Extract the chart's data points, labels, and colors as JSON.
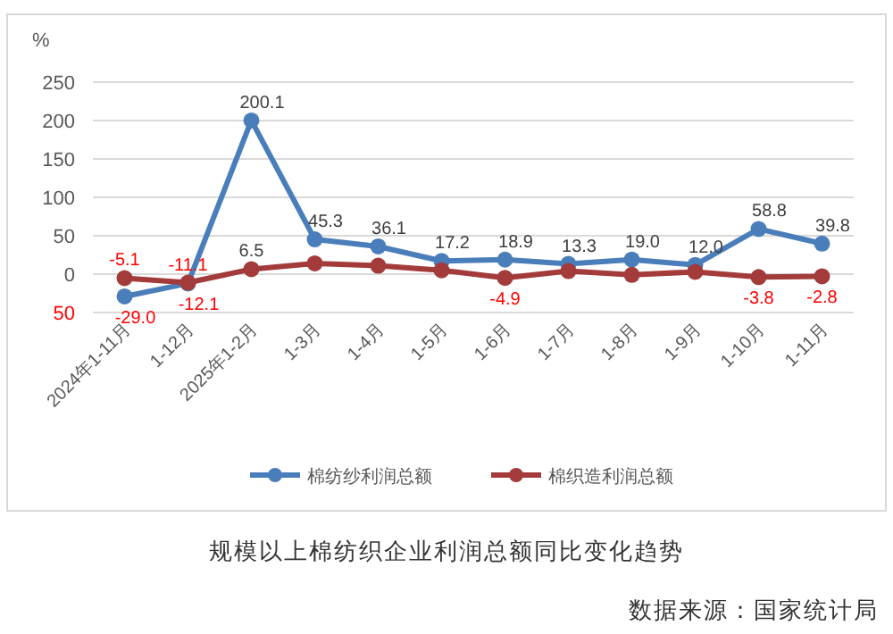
{
  "chart_data": {
    "type": "line",
    "ylabel": "%",
    "categories": [
      "2024年1-11月",
      "1-12月",
      "2025年1-2月",
      "1-3月",
      "1-4月",
      "1-5月",
      "1-6月",
      "1-7月",
      "1-8月",
      "1-9月",
      "1-10月",
      "1-11月"
    ],
    "series": [
      {
        "name": "棉纺纱利润总额",
        "color": "#4a7ebb",
        "values": [
          -29.0,
          -12.1,
          200.1,
          45.3,
          36.1,
          17.2,
          18.9,
          13.3,
          19.0,
          12.0,
          58.8,
          39.8
        ],
        "value_labels": [
          "-29.0",
          "-12.1",
          "200.1",
          "45.3",
          "36.1",
          "17.2",
          "18.9",
          "13.3",
          "19.0",
          "12.0",
          "58.8",
          "39.8"
        ]
      },
      {
        "name": "棉织造利润总额",
        "color": "#a33b3b",
        "values": [
          -5.1,
          -11.1,
          6.5,
          14,
          11,
          5,
          -4.9,
          4,
          -1,
          3,
          -3.8,
          -2.8
        ],
        "value_labels": [
          "-5.1",
          "-11.1",
          "6.5",
          null,
          null,
          null,
          "-4.9",
          null,
          null,
          null,
          "-3.8",
          "-2.8"
        ]
      }
    ],
    "ylim": [
      -50,
      250
    ],
    "yticks": [
      {
        "value": -50,
        "label": "50"
      },
      0,
      50,
      100,
      150,
      200,
      250
    ],
    "grid": "y",
    "legend": "bottom",
    "marker": "circle",
    "line_style": "solid",
    "annotations": [
      "规模以上棉纺织企业利润总额同比变化趋势",
      "数据来源：国家统计局"
    ]
  }
}
